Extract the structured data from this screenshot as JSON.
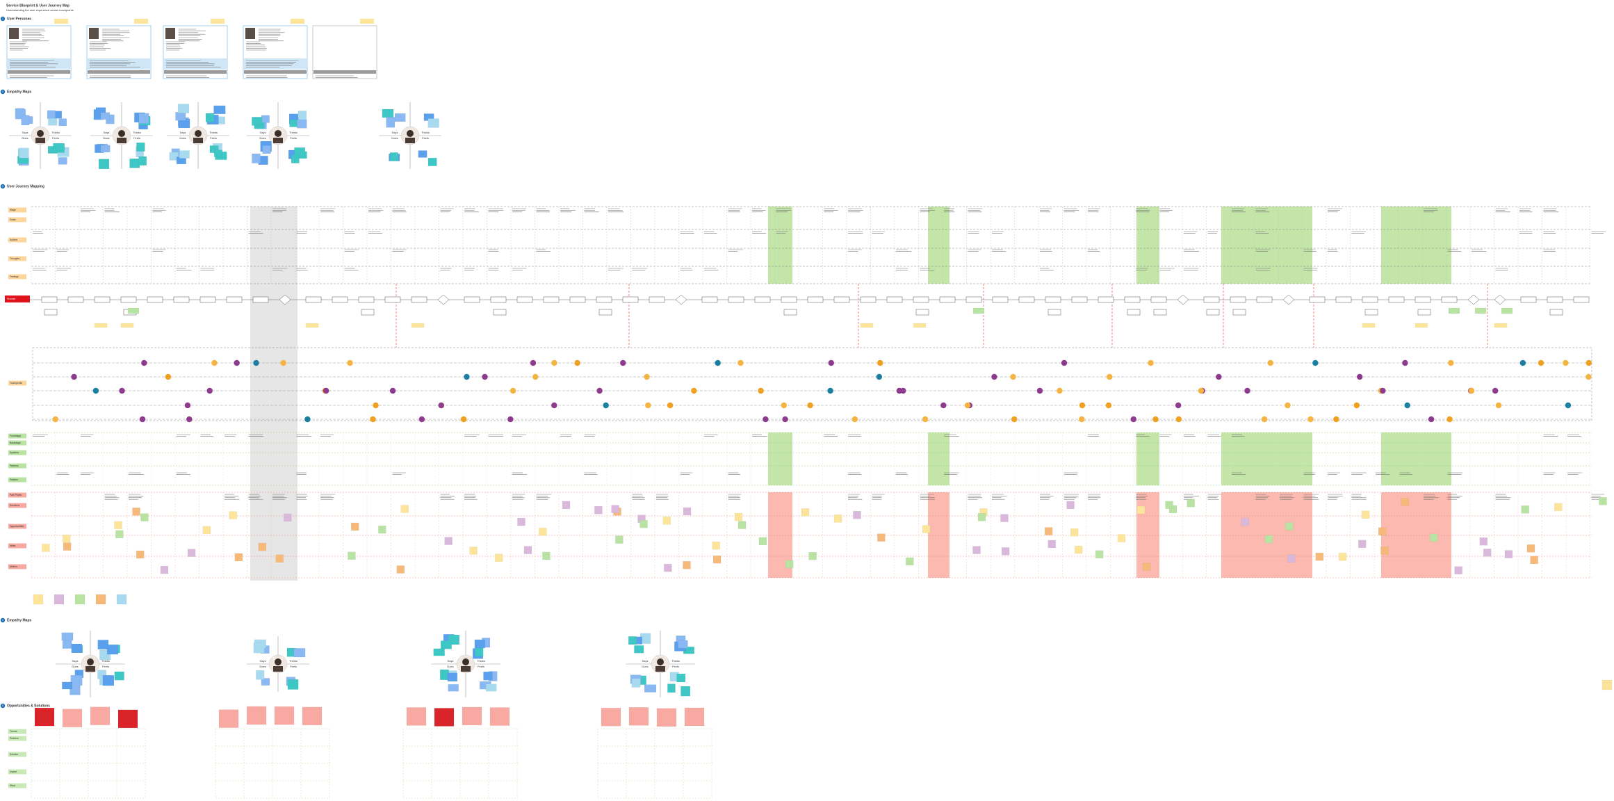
{
  "header": {
    "title": "Service Blueprint & User Journey Map",
    "subtitle": "Understanding the user experience across touchpoints"
  },
  "section_numbers": [
    "1",
    "2",
    "3",
    "4",
    "5"
  ],
  "sections": [
    "User Personas",
    "Empathy Maps",
    "User Journey Mapping",
    "Empathy Maps",
    "Opportunities & Solutions"
  ],
  "empathy_quadrants": [
    "Says",
    "Thinks",
    "Does",
    "Feels"
  ],
  "journey_lanes": {
    "stages": [
      "Stage",
      "Goals",
      "Actions",
      "Thoughts",
      "Feelings"
    ],
    "process": "Process",
    "touchpoints": "Touchpoints",
    "support": [
      "Frontstage",
      "Backstage",
      "Systems",
      "Partners",
      "Policies"
    ],
    "pains": [
      "Pain Points",
      "Emotions",
      "Opportunities",
      "Ideas",
      "Metrics"
    ]
  },
  "opportunity_lanes": [
    "Theme",
    "Problem",
    "Solution",
    "Impact",
    "Effort"
  ]
}
